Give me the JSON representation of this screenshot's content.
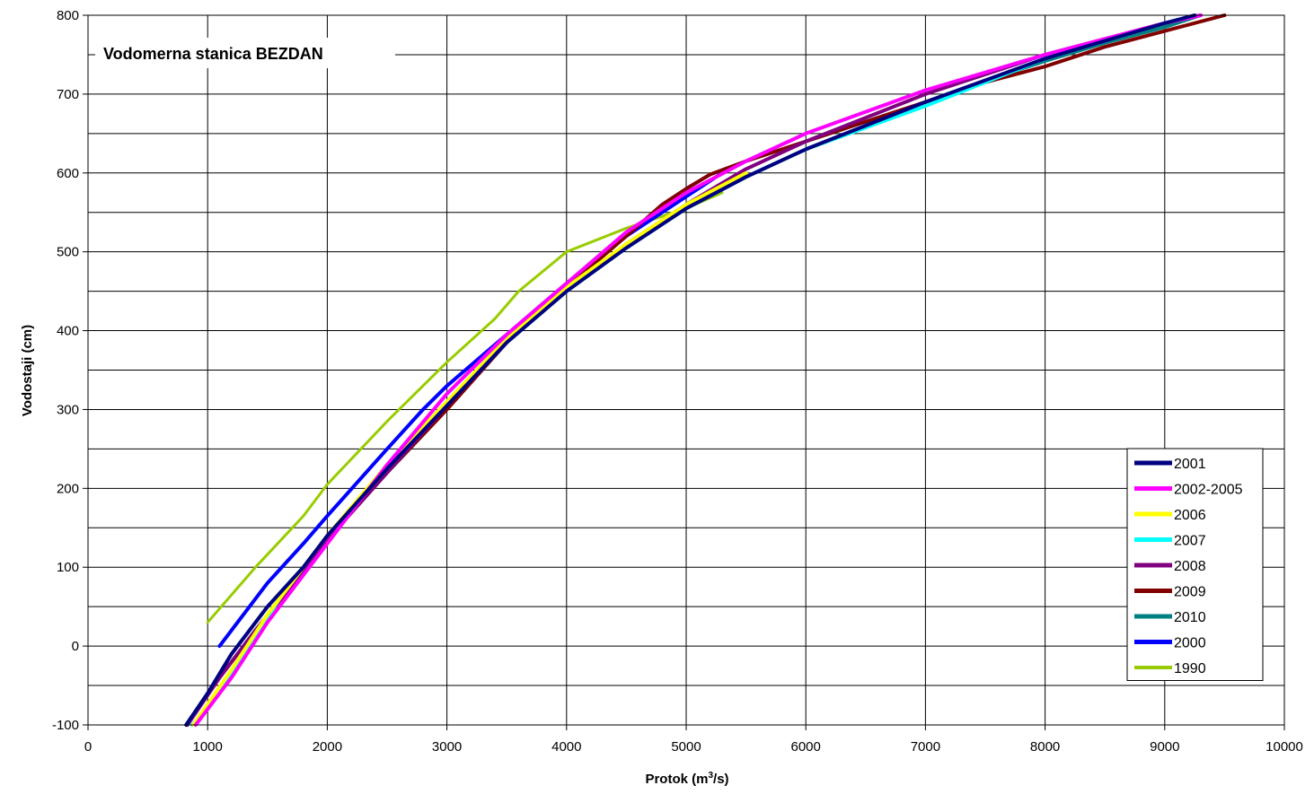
{
  "chart_data": {
    "type": "line",
    "title": "Vodomerna stanica BEZDAN",
    "xlabel": "Protok (m",
    "xlabel_sup": "3",
    "xlabel_tail": "/s)",
    "ylabel": "Vodostaji (cm)",
    "xlim": [
      0,
      10000
    ],
    "ylim": [
      -100,
      800
    ],
    "xticks": [
      0,
      1000,
      2000,
      3000,
      4000,
      5000,
      6000,
      7000,
      8000,
      9000,
      10000
    ],
    "yticks": [
      -100,
      0,
      100,
      200,
      300,
      400,
      500,
      600,
      700,
      800
    ],
    "x_tick_labels": [
      "0",
      "1000",
      "2000",
      "3000",
      "4000",
      "5000",
      "6000",
      "7000",
      "8000",
      "9000",
      "10000"
    ],
    "y_tick_labels": [
      "-100",
      "0",
      "100",
      "200",
      "300",
      "400",
      "500",
      "600",
      "700",
      "800"
    ],
    "grid": true,
    "legend_position": "bottom-right",
    "series": [
      {
        "name": "2001",
        "color": "#000080",
        "width": 4,
        "points": [
          [
            820,
            -100
          ],
          [
            1000,
            -60
          ],
          [
            1200,
            -10
          ],
          [
            1500,
            50
          ],
          [
            1800,
            100
          ],
          [
            2000,
            140
          ],
          [
            2500,
            225
          ],
          [
            3000,
            305
          ],
          [
            3500,
            385
          ],
          [
            4000,
            450
          ],
          [
            4500,
            505
          ],
          [
            5000,
            555
          ],
          [
            5500,
            595
          ],
          [
            6000,
            630
          ],
          [
            7000,
            690
          ],
          [
            8000,
            745
          ],
          [
            9000,
            790
          ],
          [
            9250,
            800
          ]
        ]
      },
      {
        "name": "2002-2005",
        "color": "#ff00ff",
        "width": 4,
        "points": [
          [
            900,
            -100
          ],
          [
            1200,
            -40
          ],
          [
            1500,
            30
          ],
          [
            2000,
            130
          ],
          [
            2500,
            230
          ],
          [
            3000,
            320
          ],
          [
            3500,
            395
          ],
          [
            4000,
            460
          ],
          [
            4500,
            525
          ],
          [
            5000,
            575
          ],
          [
            5500,
            615
          ],
          [
            6000,
            650
          ],
          [
            7000,
            705
          ],
          [
            8000,
            750
          ],
          [
            9000,
            790
          ],
          [
            9300,
            800
          ]
        ]
      },
      {
        "name": "2006",
        "color": "#ffff00",
        "width": 4,
        "points": [
          [
            880,
            -100
          ],
          [
            1200,
            -30
          ],
          [
            1500,
            40
          ],
          [
            2000,
            140
          ],
          [
            2500,
            230
          ],
          [
            3000,
            310
          ],
          [
            3500,
            390
          ],
          [
            4000,
            455
          ],
          [
            4500,
            510
          ],
          [
            5000,
            560
          ],
          [
            5500,
            600
          ]
        ]
      },
      {
        "name": "2007",
        "color": "#00ffff",
        "width": 4,
        "points": [
          [
            870,
            -100
          ],
          [
            1000,
            -80
          ],
          [
            1300,
            -10
          ],
          [
            1600,
            60
          ],
          [
            2000,
            140
          ],
          [
            2500,
            225
          ],
          [
            3000,
            310
          ],
          [
            3500,
            385
          ],
          [
            4000,
            450
          ],
          [
            4500,
            505
          ],
          [
            5000,
            555
          ],
          [
            5500,
            595
          ],
          [
            6000,
            630
          ],
          [
            7000,
            685
          ],
          [
            8000,
            745
          ],
          [
            9000,
            790
          ],
          [
            9250,
            800
          ]
        ]
      },
      {
        "name": "2008",
        "color": "#800080",
        "width": 4,
        "points": [
          [
            830,
            -100
          ],
          [
            1100,
            -40
          ],
          [
            1400,
            20
          ],
          [
            1800,
            95
          ],
          [
            2000,
            135
          ],
          [
            2500,
            220
          ],
          [
            3000,
            305
          ],
          [
            3500,
            385
          ],
          [
            4000,
            450
          ],
          [
            4500,
            510
          ],
          [
            5000,
            560
          ],
          [
            5500,
            605
          ],
          [
            6000,
            640
          ],
          [
            7000,
            700
          ],
          [
            8000,
            750
          ],
          [
            9000,
            790
          ],
          [
            9300,
            800
          ]
        ]
      },
      {
        "name": "2009",
        "color": "#800000",
        "width": 4,
        "points": [
          [
            830,
            -100
          ],
          [
            1100,
            -40
          ],
          [
            1400,
            20
          ],
          [
            1800,
            95
          ],
          [
            2000,
            135
          ],
          [
            2500,
            220
          ],
          [
            3000,
            300
          ],
          [
            3500,
            385
          ],
          [
            4000,
            455
          ],
          [
            4500,
            520
          ],
          [
            4800,
            560
          ],
          [
            5000,
            580
          ],
          [
            5200,
            598
          ],
          [
            5500,
            615
          ],
          [
            6000,
            640
          ],
          [
            6500,
            665
          ],
          [
            7000,
            690
          ],
          [
            7500,
            715
          ],
          [
            8000,
            735
          ],
          [
            8500,
            760
          ],
          [
            9000,
            780
          ],
          [
            9500,
            800
          ]
        ]
      },
      {
        "name": "2010",
        "color": "#008080",
        "width": 4,
        "points": [
          [
            820,
            -100
          ],
          [
            1000,
            -60
          ],
          [
            1200,
            -10
          ],
          [
            1500,
            50
          ],
          [
            1800,
            100
          ],
          [
            2000,
            140
          ],
          [
            2500,
            225
          ],
          [
            3000,
            305
          ],
          [
            3500,
            385
          ],
          [
            4000,
            450
          ],
          [
            4500,
            505
          ],
          [
            5000,
            555
          ],
          [
            5500,
            595
          ],
          [
            6000,
            630
          ],
          [
            6500,
            660
          ],
          [
            7000,
            690
          ],
          [
            7500,
            717
          ],
          [
            8000,
            742
          ],
          [
            8500,
            765
          ],
          [
            9000,
            785
          ],
          [
            9300,
            800
          ]
        ]
      },
      {
        "name": "2000",
        "color": "#0000ff",
        "width": 4,
        "points": [
          [
            1100,
            0
          ],
          [
            1200,
            20
          ],
          [
            1500,
            80
          ],
          [
            1800,
            130
          ],
          [
            2000,
            165
          ],
          [
            2500,
            250
          ],
          [
            2800,
            300
          ],
          [
            3000,
            330
          ],
          [
            3500,
            395
          ],
          [
            4000,
            460
          ],
          [
            4500,
            520
          ],
          [
            5000,
            570
          ],
          [
            5300,
            600
          ]
        ]
      },
      {
        "name": "1990",
        "color": "#99cc00",
        "width": 3,
        "points": [
          [
            1000,
            30
          ],
          [
            1200,
            65
          ],
          [
            1400,
            100
          ],
          [
            1800,
            165
          ],
          [
            2000,
            205
          ],
          [
            2500,
            285
          ],
          [
            3000,
            360
          ],
          [
            3400,
            415
          ],
          [
            3600,
            450
          ],
          [
            4000,
            500
          ],
          [
            4500,
            530
          ],
          [
            5000,
            555
          ],
          [
            5300,
            575
          ]
        ]
      }
    ]
  }
}
